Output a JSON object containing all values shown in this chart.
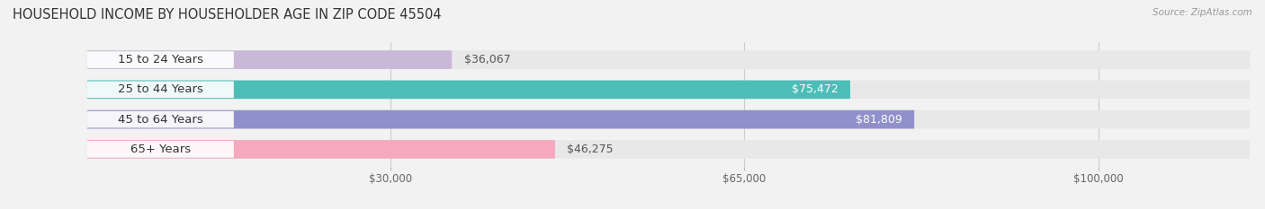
{
  "title": "HOUSEHOLD INCOME BY HOUSEHOLDER AGE IN ZIP CODE 45504",
  "source": "Source: ZipAtlas.com",
  "categories": [
    "15 to 24 Years",
    "25 to 44 Years",
    "45 to 64 Years",
    "65+ Years"
  ],
  "values": [
    36067,
    75472,
    81809,
    46275
  ],
  "bar_colors": [
    "#c9b8d8",
    "#4dbdb8",
    "#9090cc",
    "#f5a8be"
  ],
  "background_color": "#f2f2f2",
  "bar_bg_color": "#e8e8e8",
  "xlim_data": [
    0,
    115000
  ],
  "xlim_display": [
    -8000,
    115000
  ],
  "xticks": [
    30000,
    65000,
    100000
  ],
  "xtick_labels": [
    "$30,000",
    "$65,000",
    "$100,000"
  ],
  "bar_height": 0.62,
  "label_fontsize": 9.5,
  "title_fontsize": 10.5,
  "value_fontsize": 9
}
